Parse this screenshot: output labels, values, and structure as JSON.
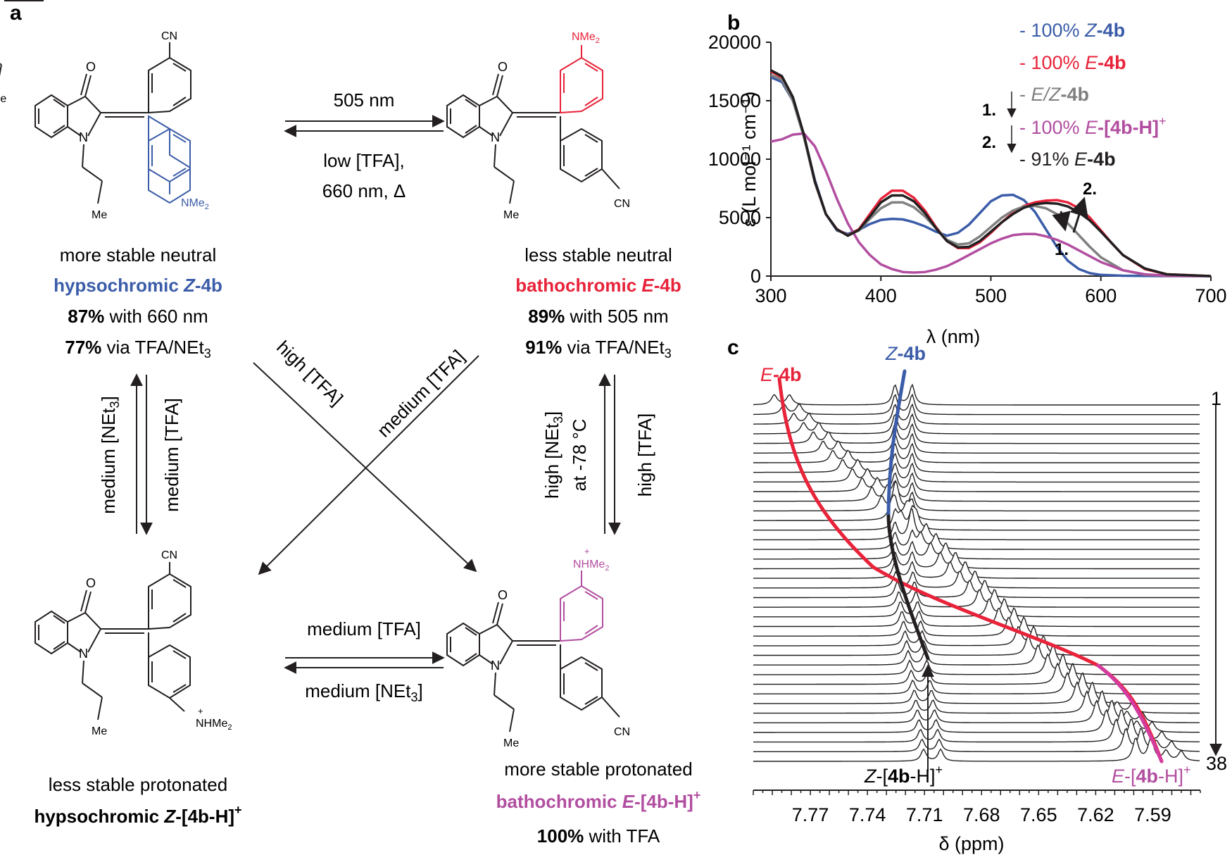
{
  "panels": {
    "a": "a",
    "b": "b",
    "c": "c"
  },
  "colors": {
    "blue": "#3b5ca8",
    "red": "#e8233a",
    "magenta": "#b24ea0",
    "grey": "#808080",
    "black": "#231f20"
  },
  "structures": {
    "cn": "CN",
    "o": "O",
    "n": "N",
    "me": "Me",
    "nme2": "NMe",
    "nme2_sub": "2",
    "nhme2": "NHMe",
    "plus": "+"
  },
  "quadrants": {
    "top_left": {
      "line1": "more stable neutral",
      "name_prefix": "hypsochromic ",
      "name_isomer": "Z",
      "name_compound": "-4b",
      "stat1_pct": "87%",
      "stat1_text": " with 660 nm",
      "stat2_pct": "77%",
      "stat2_text": " via TFA/NEt",
      "stat2_sub": "3"
    },
    "top_right": {
      "line1": "less stable neutral",
      "name_prefix": "bathochromic ",
      "name_isomer": "E",
      "name_compound": "-4b",
      "stat1_pct": "89%",
      "stat1_text": " with 505 nm",
      "stat2_pct": "91%",
      "stat2_text": " via TFA/NEt",
      "stat2_sub": "3"
    },
    "bottom_left": {
      "line1": "less stable protonated",
      "name_prefix": "hypsochromic ",
      "name_isomer": "Z",
      "name_compound": "-[4b-H]",
      "name_sup": "+"
    },
    "bottom_right": {
      "line1": "more stable protonated",
      "name_prefix": "bathochromic ",
      "name_isomer": "E",
      "name_compound": "-[4b-H]",
      "name_sup": "+",
      "stat1_pct": "100%",
      "stat1_text": " with TFA"
    }
  },
  "conditions": {
    "top_forward": "505 nm",
    "top_back_1": "low [TFA],",
    "top_back_2": "660 nm, Δ",
    "left_up": "medium [NEt",
    "left_up_sub": "3",
    "left_up_end": "]",
    "left_down": "medium [TFA]",
    "right_up_1": "high [NEt",
    "right_up_sub": "3",
    "right_up_end": "]",
    "right_up_2": "at -78 °C",
    "right_down": "high [TFA]",
    "diag_1": "high [TFA]",
    "diag_2": "medium [TFA]",
    "bottom_forward": "medium  [TFA]",
    "bottom_back": "medium  [NEt",
    "bottom_back_sub": "3",
    "bottom_back_end": "]"
  },
  "chart_data": [
    {
      "type": "line",
      "panel": "b",
      "title": "",
      "xlabel": "λ (nm)",
      "ylabel": "ε (L mol⁻¹ cm⁻¹)",
      "xlim": [
        300,
        700
      ],
      "ylim": [
        0,
        20000
      ],
      "xticks": [
        300,
        400,
        500,
        600,
        700
      ],
      "yticks": [
        0,
        5000,
        10000,
        15000,
        20000
      ],
      "legend": [
        {
          "dash": "- ",
          "pct": "100% ",
          "iso": "Z",
          "cmp": "-4b",
          "sup": "",
          "color": "#3b5ca8"
        },
        {
          "dash": "- ",
          "pct": "100% ",
          "iso": "E",
          "cmp": "-4b",
          "sup": "",
          "color": "#e8233a"
        },
        {
          "dash": "- ",
          "pct": "",
          "iso": "E/Z",
          "cmp": "-4b",
          "sup": "",
          "color": "#808080"
        },
        {
          "dash": "- ",
          "pct": "100% ",
          "iso": "E",
          "cmp": "-[4b-H]",
          "sup": "+",
          "color": "#b24ea0"
        },
        {
          "dash": "- ",
          "pct": "91% ",
          "iso": "E",
          "cmp": "-4b",
          "sup": "",
          "color": "#231f20"
        }
      ],
      "steps": [
        "1.",
        "2."
      ],
      "annotations": [
        "1.",
        "2."
      ],
      "series": [
        {
          "name": "100% Z-4b",
          "color": "#3b5ca8",
          "x": [
            300,
            310,
            320,
            330,
            340,
            350,
            360,
            370,
            380,
            390,
            400,
            410,
            420,
            430,
            440,
            450,
            460,
            470,
            480,
            490,
            500,
            510,
            520,
            530,
            540,
            550,
            560,
            570,
            580,
            590,
            600,
            620,
            640,
            660,
            700
          ],
          "y": [
            17000,
            16600,
            15000,
            12000,
            8200,
            5300,
            3900,
            3600,
            3950,
            4450,
            4800,
            4900,
            4850,
            4600,
            4250,
            3800,
            3450,
            3700,
            4400,
            5400,
            6400,
            6900,
            6950,
            6500,
            5500,
            4000,
            2500,
            1300,
            600,
            250,
            100,
            30,
            10,
            0,
            0
          ]
        },
        {
          "name": "100% E-4b",
          "color": "#e8233a",
          "x": [
            300,
            310,
            320,
            330,
            340,
            350,
            360,
            370,
            380,
            390,
            400,
            410,
            420,
            430,
            440,
            450,
            460,
            470,
            480,
            490,
            500,
            510,
            520,
            530,
            540,
            550,
            560,
            570,
            580,
            590,
            600,
            610,
            620,
            640,
            660,
            700
          ],
          "y": [
            17500,
            17000,
            15200,
            12000,
            8000,
            5300,
            4000,
            3500,
            4000,
            5300,
            6600,
            7300,
            7300,
            6700,
            5600,
            4200,
            3000,
            2400,
            2400,
            2900,
            3700,
            4600,
            5400,
            6000,
            6300,
            6450,
            6500,
            6300,
            5800,
            5000,
            3900,
            2800,
            1800,
            600,
            150,
            0
          ]
        },
        {
          "name": "E/Z-4b",
          "color": "#808080",
          "x": [
            300,
            310,
            320,
            330,
            340,
            350,
            360,
            370,
            380,
            390,
            400,
            410,
            420,
            430,
            440,
            450,
            460,
            470,
            480,
            490,
            500,
            510,
            520,
            530,
            540,
            550,
            560,
            570,
            580,
            590,
            600,
            620,
            640,
            660,
            700
          ],
          "y": [
            17200,
            16800,
            15000,
            11900,
            8000,
            5300,
            3950,
            3500,
            3900,
            4900,
            5800,
            6300,
            6300,
            5900,
            5100,
            4100,
            3100,
            2700,
            2800,
            3400,
            4200,
            5000,
            5600,
            5950,
            6000,
            5800,
            5300,
            4500,
            3500,
            2500,
            1600,
            500,
            120,
            20,
            0
          ]
        },
        {
          "name": "100% E-[4b-H]+",
          "color": "#b24ea0",
          "x": [
            300,
            310,
            320,
            330,
            340,
            350,
            360,
            370,
            380,
            390,
            400,
            410,
            420,
            430,
            440,
            450,
            460,
            470,
            480,
            490,
            500,
            510,
            520,
            530,
            540,
            550,
            560,
            570,
            580,
            590,
            600,
            620,
            640,
            660,
            700
          ],
          "y": [
            11500,
            11700,
            12100,
            12200,
            11100,
            9000,
            6600,
            4500,
            2900,
            1800,
            1000,
            600,
            350,
            300,
            350,
            550,
            850,
            1300,
            1800,
            2300,
            2800,
            3200,
            3500,
            3600,
            3600,
            3400,
            3100,
            2700,
            2200,
            1700,
            1200,
            500,
            150,
            30,
            0
          ]
        },
        {
          "name": "91% E-4b",
          "color": "#231f20",
          "x": [
            300,
            310,
            320,
            330,
            340,
            350,
            360,
            370,
            380,
            390,
            400,
            410,
            420,
            430,
            440,
            450,
            460,
            470,
            480,
            490,
            500,
            510,
            520,
            530,
            540,
            550,
            560,
            570,
            580,
            590,
            600,
            610,
            620,
            640,
            660,
            700
          ],
          "y": [
            17600,
            17100,
            15300,
            12100,
            8100,
            5300,
            4000,
            3450,
            3950,
            5100,
            6300,
            6900,
            6900,
            6400,
            5400,
            4100,
            3000,
            2450,
            2500,
            3000,
            3800,
            4600,
            5300,
            5850,
            6150,
            6250,
            6200,
            5950,
            5450,
            4750,
            3800,
            2800,
            1800,
            650,
            150,
            0
          ]
        }
      ]
    },
    {
      "type": "line",
      "panel": "c",
      "title": "",
      "xlabel": "δ (ppm)",
      "ylabel": "",
      "xlim": [
        7.8,
        7.565
      ],
      "xticks": [
        7.77,
        7.74,
        7.71,
        7.68,
        7.65,
        7.62,
        7.59
      ],
      "xtick_labels": [
        "7.77",
        "7.74",
        "7.71",
        "7.68",
        "7.65",
        "7.62",
        "7.59"
      ],
      "n_spectra": 38,
      "first_label": "1",
      "last_label": "38",
      "peaks_shown": {
        "z_4b_ppm": [
          7.725,
          7.715
        ],
        "e_4b_ppm_start": [
          7.786,
          7.782
        ],
        "e_4bh_ppm_end": [
          7.605,
          7.592,
          7.582
        ]
      },
      "curve_labels": {
        "e4b": {
          "iso": "E",
          "cmp": "-4b"
        },
        "z4b": {
          "iso": "Z",
          "cmp": "-4b"
        },
        "z4bh": {
          "iso": "Z",
          "pre": "-[",
          "bold": "4b",
          "post": "-H]",
          "sup": "+"
        },
        "e4bh": {
          "iso": "E",
          "pre": "-[",
          "bold": "4b",
          "post": "-H]",
          "sup": "+"
        }
      }
    }
  ]
}
